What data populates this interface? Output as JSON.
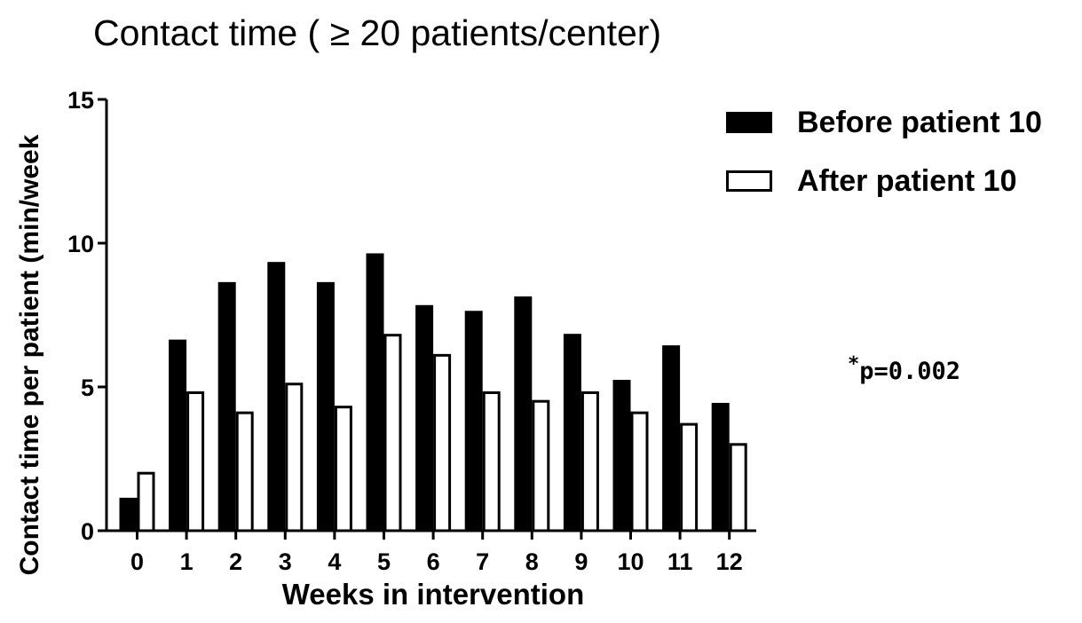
{
  "chart_data": {
    "type": "bar",
    "title": "Contact time ( ≥ 20 patients/center)",
    "xlabel": "Weeks in intervention",
    "ylabel": "Contact time per patient (min/week",
    "categories": [
      "0",
      "1",
      "2",
      "3",
      "4",
      "5",
      "6",
      "7",
      "8",
      "9",
      "10",
      "11",
      "12"
    ],
    "series": [
      {
        "name": "Before patient 10",
        "color": "#000000",
        "values": [
          1.1,
          6.6,
          8.6,
          9.3,
          8.6,
          9.6,
          7.8,
          7.6,
          8.1,
          6.8,
          5.2,
          6.4,
          4.4
        ]
      },
      {
        "name": "After patient 10",
        "color": "#ffffff",
        "values": [
          2.0,
          4.8,
          4.1,
          5.1,
          4.3,
          6.8,
          6.1,
          4.8,
          4.5,
          4.8,
          4.1,
          3.7,
          3.0
        ]
      }
    ],
    "ylim": [
      0,
      15
    ],
    "yticks": [
      "0",
      "5",
      "10",
      "15"
    ],
    "legend_position": "top-right",
    "grid": false,
    "annotation": {
      "star": "*",
      "text": "p=0.002"
    }
  }
}
